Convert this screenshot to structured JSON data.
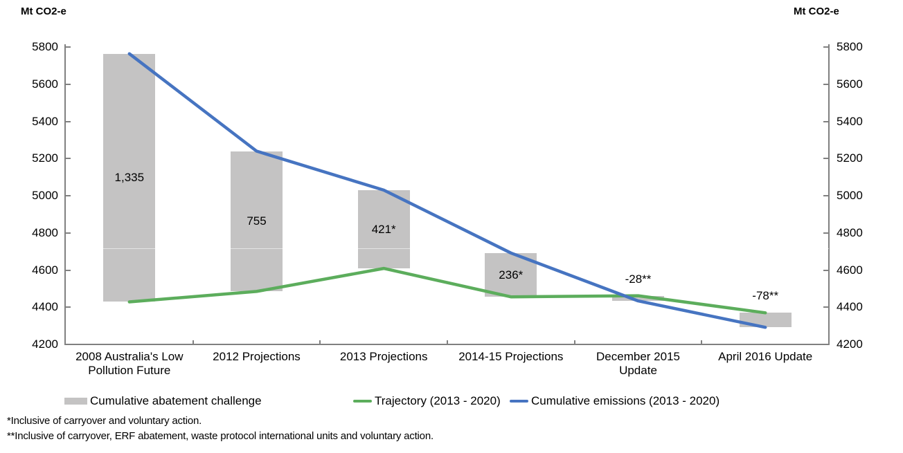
{
  "chart_data": {
    "type": "bar+line",
    "y_axis_title_left": "Mt CO2-e",
    "y_axis_title_right": "Mt CO2-e",
    "ylim": [
      4200,
      5800
    ],
    "y_ticks": [
      5800,
      5600,
      5400,
      5200,
      5000,
      4800,
      4600,
      4400,
      4200
    ],
    "grid": "off",
    "categories": [
      "2008 Australia's Low Pollution Future",
      "2012 Projections",
      "2013 Projections",
      "2014-15 Projections",
      "December 2015 Update",
      "April 2016 Update"
    ],
    "bars": {
      "id": "abatement",
      "name": "Cumulative abatement challenge",
      "color": "#C4C3C3",
      "values": [
        1335,
        755,
        421,
        236,
        -28,
        -78
      ],
      "labels": [
        "1,335",
        "755",
        "421*",
        "236*",
        "-28**",
        "-78**"
      ],
      "note": "bar spans from trajectory value to cumulative-emissions value"
    },
    "series": [
      {
        "id": "trajectory",
        "name": "Trajectory (2013 - 2020)",
        "type": "line",
        "color": "#5CAD5C",
        "values": [
          4429,
          4485,
          4609,
          4456,
          4462,
          4370
        ]
      },
      {
        "id": "cumulative-emissions",
        "name": "Cumulative emissions (2013 - 2020)",
        "type": "line",
        "color": "#4674C1",
        "values": [
          5764,
          5240,
          5030,
          4692,
          4434,
          4292
        ]
      }
    ],
    "legend": {
      "position": "bottom",
      "entries": [
        "Cumulative abatement challenge",
        "Trajectory (2013 - 2020)",
        "Cumulative emissions (2013 - 2020)"
      ]
    },
    "footnotes": [
      "*Inclusive of carryover and voluntary action.",
      "**Inclusive of carryover, ERF abatement, waste protocol international units and voluntary action."
    ],
    "axis_color": "#808080"
  }
}
